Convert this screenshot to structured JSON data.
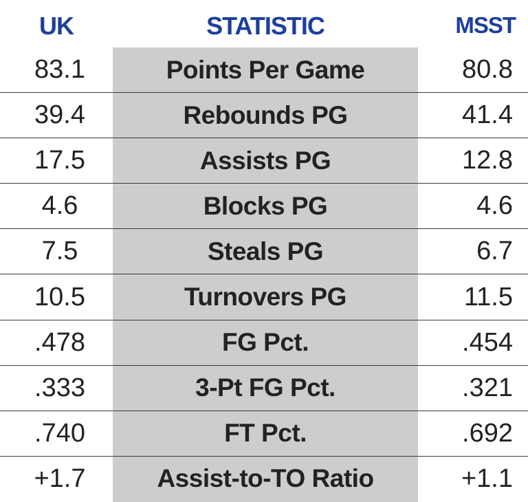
{
  "chart_data": {
    "type": "table",
    "columns": [
      "UK",
      "STATISTIC",
      "MSST"
    ],
    "colors": {
      "header_text": "#1c3f9c",
      "statistic_band": "#cdcdcd",
      "row_divider": "#3a3a3a",
      "body_text": "#222222"
    },
    "rows": [
      {
        "uk": "83.1",
        "stat": "Points Per Game",
        "msst": "80.8"
      },
      {
        "uk": "39.4",
        "stat": "Rebounds PG",
        "msst": "41.4"
      },
      {
        "uk": "17.5",
        "stat": "Assists PG",
        "msst": "12.8"
      },
      {
        "uk": "4.6",
        "stat": "Blocks PG",
        "msst": "4.6"
      },
      {
        "uk": "7.5",
        "stat": "Steals PG",
        "msst": "6.7"
      },
      {
        "uk": "10.5",
        "stat": "Turnovers PG",
        "msst": "11.5"
      },
      {
        "uk": ".478",
        "stat": "FG Pct.",
        "msst": ".454"
      },
      {
        "uk": ".333",
        "stat": "3-Pt FG Pct.",
        "msst": ".321"
      },
      {
        "uk": ".740",
        "stat": "FT Pct.",
        "msst": ".692"
      },
      {
        "uk": "+1.7",
        "stat": "Assist-to-TO Ratio",
        "msst": "+1.1"
      }
    ]
  }
}
